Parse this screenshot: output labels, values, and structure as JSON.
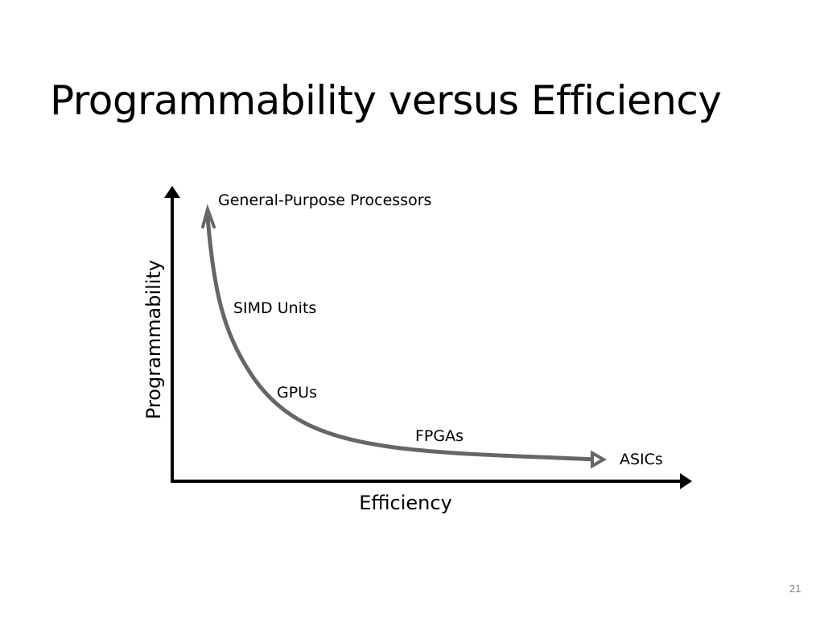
{
  "slide": {
    "title": "Programmability versus Efficiency",
    "page_number": "21"
  },
  "diagram": {
    "x_axis_label": "Efficiency",
    "y_axis_label": "Programmability",
    "curve_color": "#666666",
    "axis_color": "#000000",
    "points": [
      {
        "label": "General-Purpose Processors"
      },
      {
        "label": "SIMD Units"
      },
      {
        "label": "GPUs"
      },
      {
        "label": "FPGAs"
      },
      {
        "label": "ASICs"
      }
    ]
  }
}
